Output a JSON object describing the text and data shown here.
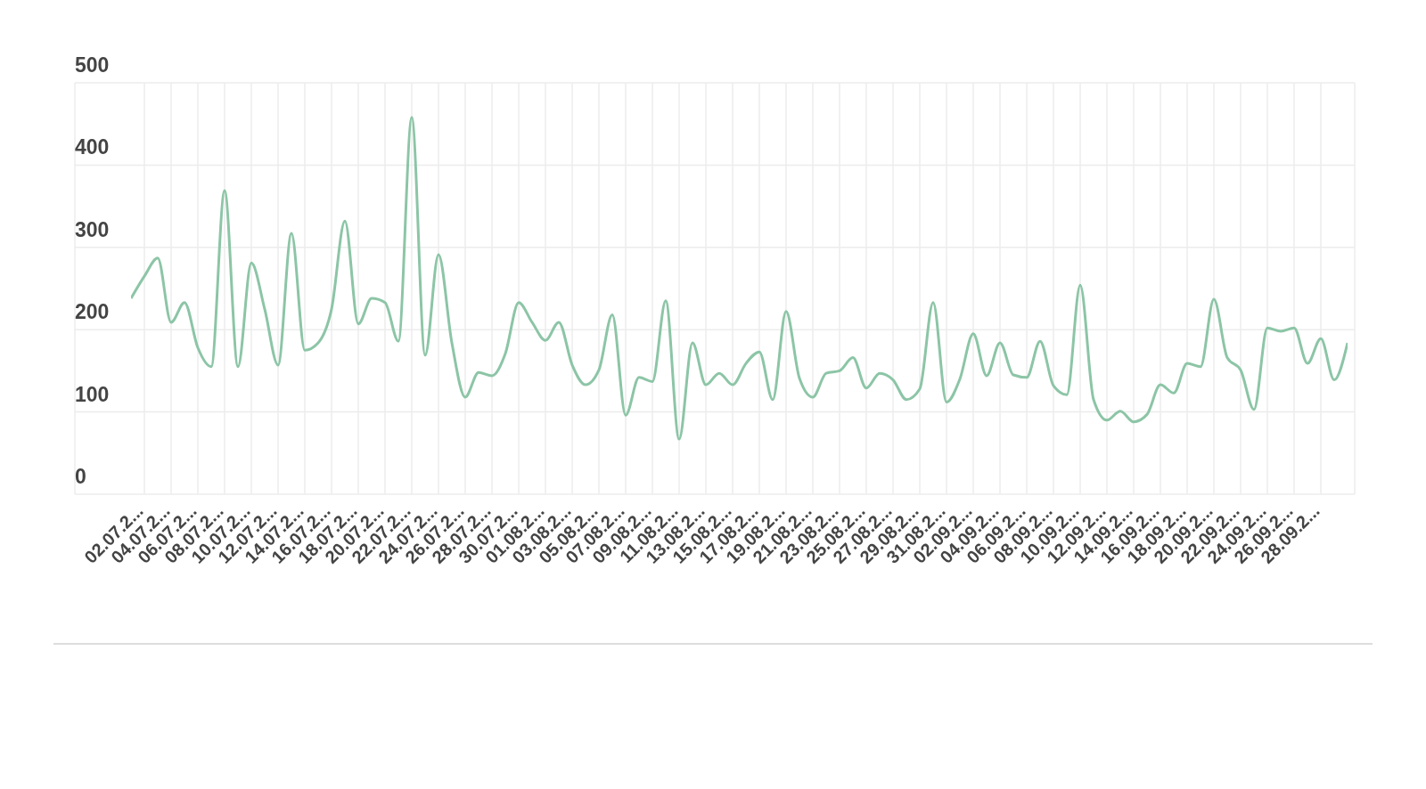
{
  "chart_data": {
    "type": "line",
    "categories": [
      null,
      "02.07.2...",
      null,
      "04.07.2...",
      null,
      "06.07.2...",
      null,
      "08.07.2...",
      null,
      "10.07.2...",
      null,
      "12.07.2...",
      null,
      "14.07.2...",
      null,
      "16.07.2...",
      null,
      "18.07.2...",
      null,
      "20.07.2...",
      null,
      "22.07.2...",
      null,
      "24.07.2...",
      null,
      "26.07.2...",
      null,
      "28.07.2...",
      null,
      "30.07.2...",
      null,
      "01.08.2...",
      null,
      "03.08.2...",
      null,
      "05.08.2...",
      null,
      "07.08.2...",
      null,
      "09.08.2...",
      null,
      "11.08.2...",
      null,
      "13.08.2...",
      null,
      "15.08.2...",
      null,
      "17.08.2...",
      null,
      "19.08.2...",
      null,
      "21.08.2...",
      null,
      "23.08.2...",
      null,
      "25.08.2...",
      null,
      "27.08.2...",
      null,
      "29.08.2...",
      null,
      "31.08.2...",
      null,
      "02.09.2...",
      null,
      "04.09.2...",
      null,
      "06.09.2...",
      null,
      "08.09.2...",
      null,
      "10.09.2...",
      null,
      "12.09.2...",
      null,
      "14.09.2...",
      null,
      "16.09.2...",
      null,
      "18.09.2...",
      null,
      "20.09.2...",
      null,
      "22.09.2...",
      null,
      "24.09.2...",
      null,
      "26.09.2...",
      null,
      "28.09.2...",
      null,
      null
    ],
    "series": [
      {
        "color": "#8cc5a6",
        "values": [
          238,
          265,
          287,
          209,
          233,
          178,
          155,
          369,
          155,
          281,
          225,
          157,
          317,
          175,
          184,
          225,
          332,
          207,
          238,
          233,
          186,
          458,
          169,
          291,
          184,
          118,
          148,
          144,
          171,
          233,
          209,
          187,
          209,
          157,
          133,
          151,
          218,
          96,
          142,
          137,
          235,
          67,
          184,
          133,
          147,
          133,
          159,
          173,
          115,
          222,
          141,
          118,
          147,
          150,
          166,
          129,
          147,
          139,
          115,
          128,
          233,
          112,
          140,
          195,
          144,
          184,
          145,
          142,
          186,
          132,
          121,
          254,
          115,
          90,
          101,
          88,
          97,
          133,
          123,
          159,
          155,
          237,
          166,
          151,
          103,
          202,
          198,
          202,
          159,
          189,
          139,
          184
        ]
      }
    ],
    "ylim": [
      0,
      500
    ],
    "yticks": [
      0,
      100,
      200,
      300,
      400,
      500
    ],
    "grid": true,
    "legend": false
  }
}
